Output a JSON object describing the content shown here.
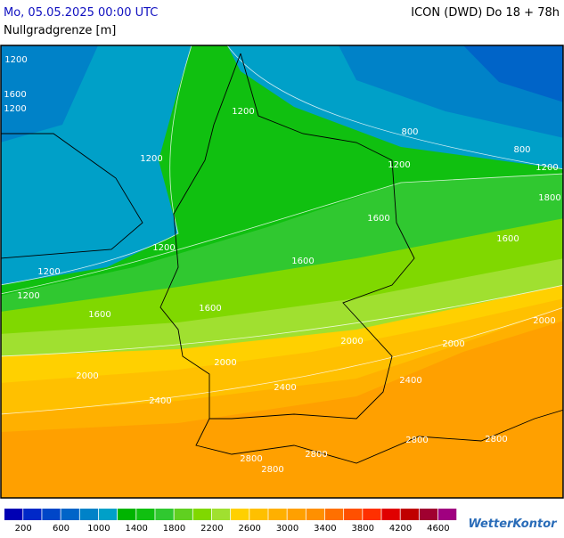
{
  "header": {
    "datetime": "Mo, 05.05.2025 00:00 UTC",
    "model": "ICON (DWD) Do 18 + 78h",
    "parameter": "Nullgradgrenze [m]"
  },
  "map": {
    "contour_labels": [
      "1200",
      "1600",
      "1200",
      "1200",
      "800",
      "800",
      "1200",
      "1200",
      "1200",
      "1800",
      "1600",
      "1600",
      "1200",
      "1200",
      "1600",
      "1200",
      "1600",
      "1600",
      "2000",
      "2000",
      "2000",
      "2000",
      "2400",
      "2000",
      "2400",
      "2400",
      "2800",
      "2800",
      "2800",
      "2800",
      "2800"
    ]
  },
  "legend": {
    "colors": [
      "#0000b4",
      "#0028c8",
      "#0046c8",
      "#0064c8",
      "#0082c8",
      "#00a0c8",
      "#00b400",
      "#10c010",
      "#30c830",
      "#60d020",
      "#80d800",
      "#a0e030",
      "#ffd000",
      "#ffc000",
      "#ffb000",
      "#ffa000",
      "#ff9000",
      "#ff7000",
      "#ff5000",
      "#ff3000",
      "#e00000",
      "#c00000",
      "#a00030",
      "#a00080"
    ],
    "labels": [
      200,
      600,
      1000,
      1400,
      1800,
      2200,
      2600,
      3000,
      3400,
      3800,
      4200,
      4600
    ]
  },
  "logo": "WetterKontor"
}
